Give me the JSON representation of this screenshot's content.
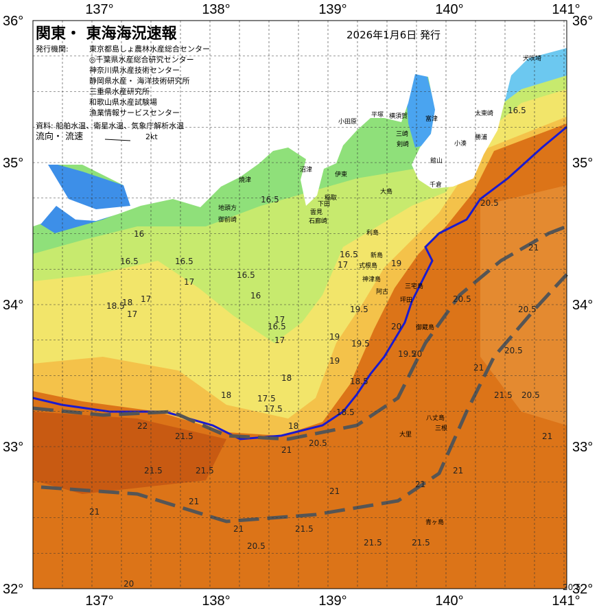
{
  "header": {
    "title": "関東・ 東海海況速報",
    "date": "2026年1月6日 発行",
    "issuer_label": "発行機関:",
    "issuers": [
      "東京都島しょ農林水産総合センター",
      "◎千葉県水産総合研究センター",
      "神奈川県水産技術センター",
      "静岡県水産・ 海洋技術研究所",
      "三重県水産研究所",
      "和歌山県水産試験場",
      "漁業情報サービスセンター"
    ],
    "source": "資料: 船舶水温、衛星水温、気象庁解析水温",
    "flow": "流向・ 流速",
    "flow_scale": "2kt"
  },
  "axes": {
    "lat_labels": [
      "36°",
      "35°",
      "34°",
      "33°",
      "32°"
    ],
    "lon_labels": [
      "137°",
      "138°",
      "139°",
      "140°",
      "141°"
    ]
  },
  "places": [
    "犬吠埼",
    "太東崎",
    "勝浦",
    "小湊",
    "千倉",
    "館山",
    "富津",
    "横須賀",
    "平塚",
    "小田原",
    "剣崎",
    "三崎",
    "伊東",
    "稲取",
    "下田",
    "沼津",
    "焼津",
    "地頭方",
    "御前崎",
    "雲見",
    "石廊崎",
    "大島",
    "利島",
    "新島",
    "式根島",
    "神津島",
    "三宅島",
    "阿古",
    "坪田",
    "御蔵島",
    "八丈島",
    "三根",
    "大里",
    "青ヶ島"
  ],
  "isotherms": [
    "16.5",
    "16.5",
    "16",
    "16.5",
    "16.5",
    "17",
    "17",
    "18.5",
    "18",
    "17",
    "16.5",
    "16",
    "16.5",
    "17",
    "17",
    "17.5",
    "18",
    "18",
    "18.5",
    "19",
    "19.5",
    "19",
    "19.5",
    "20",
    "20",
    "20.5",
    "20.5",
    "21",
    "21",
    "21.5",
    "20.5",
    "21",
    "20.5",
    "21.5",
    "21",
    "21",
    "22",
    "21.5",
    "21.5",
    "21",
    "21",
    "20.5",
    "21",
    "21.5",
    "21.5",
    "20.5",
    "21.5",
    "20",
    "21",
    "20.5",
    "21",
    "18.5",
    "19",
    "19.5",
    "20.5",
    "17.5",
    "18",
    "16.5",
    "17"
  ]
}
